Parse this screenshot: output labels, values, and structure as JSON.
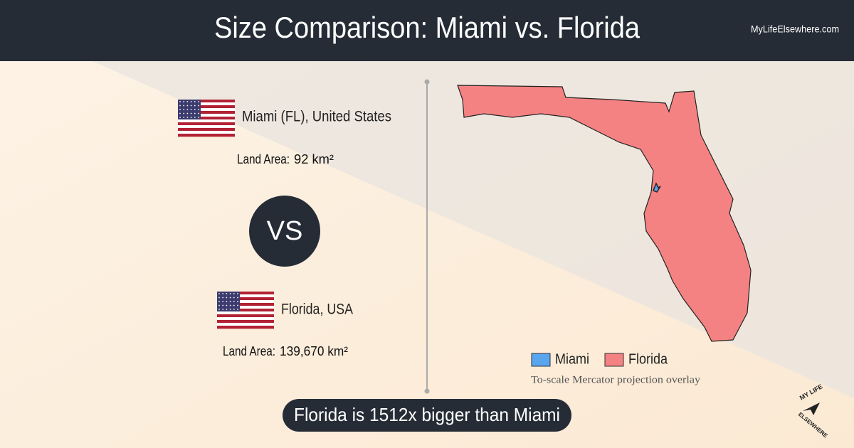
{
  "header": {
    "title": "Size Comparison: Miami vs. Florida",
    "site": "MyLifeElsewhere.com"
  },
  "places": [
    {
      "name": "Miami (FL), United States",
      "area_label": "Land Area:",
      "area": "92 km²"
    },
    {
      "name": "Florida, USA",
      "area_label": "Land Area:",
      "area": "139,670 km²"
    }
  ],
  "vs": "VS",
  "legend": {
    "items": [
      "Miami",
      "Florida"
    ],
    "note": "To-scale Mercator projection overlay"
  },
  "banner": "Florida is 1512x bigger than Miami",
  "logo": {
    "top": "MY LIFE",
    "bottom": "ELSEWHERE"
  }
}
